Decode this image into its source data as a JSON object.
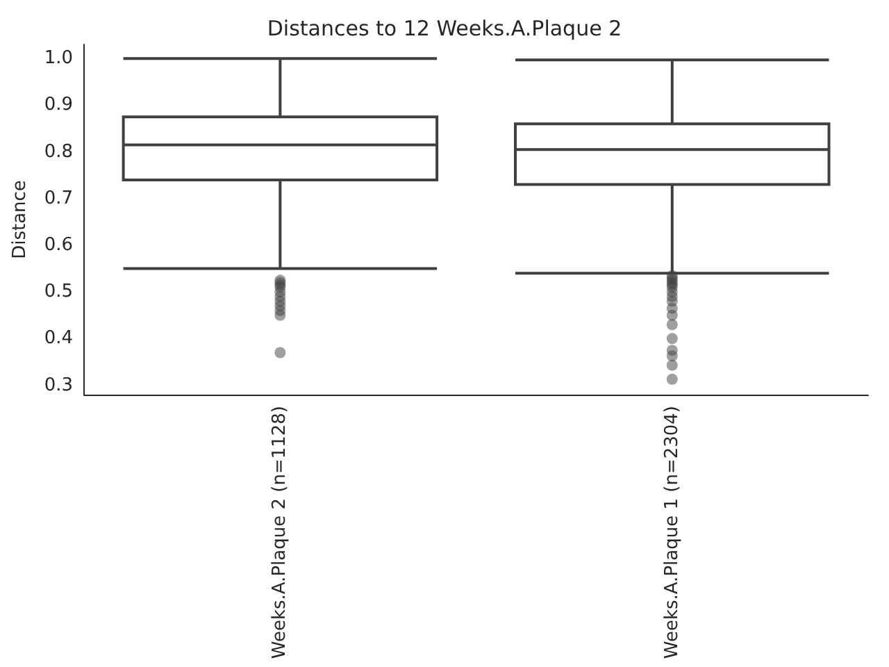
{
  "chart_data": {
    "type": "box",
    "title": "Distances to 12 Weeks.A.Plaque 2",
    "ylabel": "Distance",
    "categories": [
      "Weeks.A.Plaque 2 (n=1128)",
      "Weeks.A.Plaque 1 (n=2304)"
    ],
    "boxes": [
      {
        "low": 0.55,
        "q1": 0.74,
        "median": 0.815,
        "q3": 0.875,
        "high": 1.0,
        "outliers": [
          0.525,
          0.52,
          0.515,
          0.51,
          0.5,
          0.49,
          0.48,
          0.47,
          0.46,
          0.45,
          0.37
        ]
      },
      {
        "low": 0.54,
        "q1": 0.73,
        "median": 0.805,
        "q3": 0.86,
        "high": 0.997,
        "outliers": [
          0.535,
          0.53,
          0.525,
          0.52,
          0.515,
          0.51,
          0.5,
          0.49,
          0.48,
          0.465,
          0.45,
          0.43,
          0.4,
          0.375,
          0.363,
          0.343,
          0.313
        ]
      }
    ],
    "color": "#3f3f3f",
    "ylim": [
      0.28,
      1.03
    ],
    "yticks": [
      0.3,
      0.4,
      0.5,
      0.6,
      0.7,
      0.8,
      0.9,
      {
        "value": 1,
        "label": "1.0"
      }
    ]
  }
}
